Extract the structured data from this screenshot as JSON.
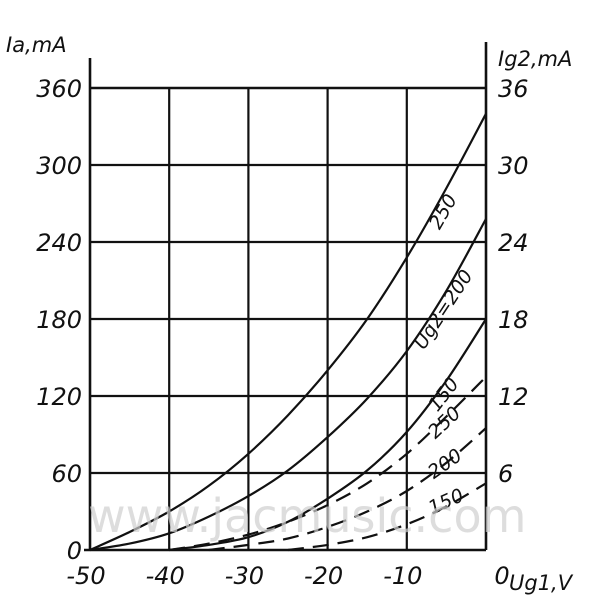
{
  "chart_data": {
    "type": "line",
    "xlabel": "Ug1,V",
    "ylabel": "Ia,mA",
    "ylabel_right": "Ig2,mA",
    "xlim": [
      -50,
      0
    ],
    "ylim": [
      0,
      360
    ],
    "ylim_right": [
      0,
      36
    ],
    "grid": true,
    "x_ticks": [
      -50,
      -40,
      -30,
      -20,
      -10,
      0
    ],
    "x_tick_labels": [
      "-50",
      "-40",
      "-30",
      "-20",
      "-10",
      "0"
    ],
    "y_ticks": [
      0,
      60,
      120,
      180,
      240,
      300,
      360
    ],
    "y_tick_labels": [
      "0",
      "60",
      "120",
      "180",
      "240",
      "300",
      "360"
    ],
    "y_right_ticks": [
      6,
      12,
      18,
      24,
      30,
      36
    ],
    "y_right_tick_labels": [
      "6",
      "12",
      "18",
      "24",
      "30",
      "36"
    ],
    "series": [
      {
        "name": "250",
        "axis": "left",
        "style": "solid",
        "x": [
          -50,
          -45,
          -40,
          -35,
          -30,
          -25,
          -20,
          -15,
          -10,
          -5,
          0
        ],
        "y": [
          0,
          14,
          30,
          50,
          75,
          105,
          140,
          180,
          228,
          282,
          340
        ]
      },
      {
        "name": "Ug2=200",
        "axis": "left",
        "style": "solid",
        "x": [
          -50,
          -45,
          -40,
          -35,
          -30,
          -25,
          -20,
          -15,
          -10,
          -5,
          0
        ],
        "y": [
          0,
          5,
          13,
          26,
          42,
          62,
          88,
          118,
          155,
          202,
          258
        ]
      },
      {
        "name": "150",
        "axis": "left",
        "style": "solid",
        "x": [
          -40,
          -35,
          -30,
          -25,
          -20,
          -15,
          -10,
          -5,
          0
        ],
        "y": [
          0,
          4,
          10,
          22,
          40,
          62,
          92,
          132,
          180
        ]
      },
      {
        "name": "250",
        "axis": "right",
        "style": "dashed",
        "x": [
          -40,
          -35,
          -30,
          -25,
          -20,
          -15,
          -10,
          -5,
          0
        ],
        "y": [
          0,
          0.5,
          1.2,
          2.2,
          3.5,
          5.2,
          7.5,
          10.4,
          13.5
        ]
      },
      {
        "name": "200",
        "axis": "right",
        "style": "dashed",
        "x": [
          -35,
          -30,
          -25,
          -20,
          -15,
          -10,
          -5,
          0
        ],
        "y": [
          0,
          0.4,
          0.9,
          1.8,
          3.0,
          4.6,
          6.8,
          9.5
        ]
      },
      {
        "name": "150",
        "axis": "right",
        "style": "dashed",
        "x": [
          -25,
          -20,
          -15,
          -10,
          -5,
          0
        ],
        "y": [
          0,
          0.4,
          1.0,
          2.0,
          3.4,
          5.2
        ]
      }
    ],
    "watermark": "www.jacmusic.com"
  }
}
